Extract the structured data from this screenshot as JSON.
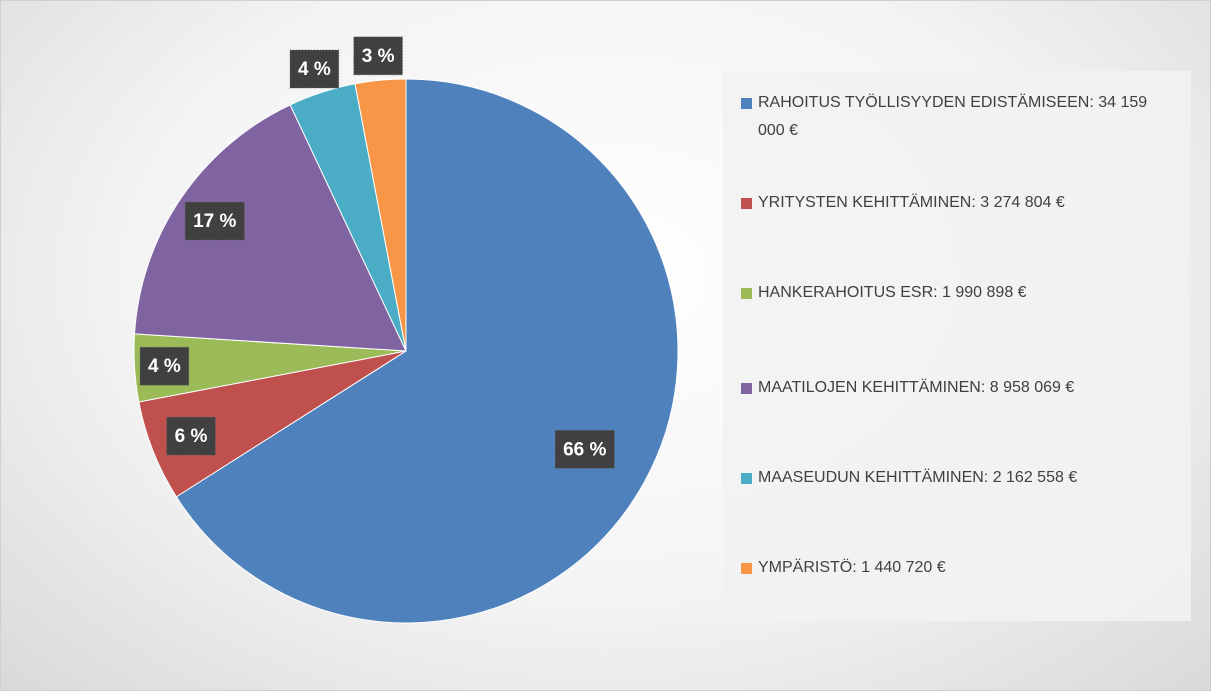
{
  "chart_data": {
    "type": "pie",
    "categories": [
      "RAHOITUS TYÖLLISYYDEN EDISTÄMISEEN: 34 159 000 €",
      "YRITYSTEN KEHITTÄMINEN: 3 274 804 €",
      "HANKERAHOITUS ESR: 1 990 898 €",
      "MAATILOJEN KEHITTÄMINEN: 8 958 069 €",
      "MAASEUDUN KEHITTÄMINEN: 2 162 558 €",
      "YMPÄRISTÖ: 1 440 720 €"
    ],
    "values": [
      66,
      6,
      4,
      17,
      4,
      3
    ],
    "value_labels": [
      "66 %",
      "6 %",
      "4 %",
      "17 %",
      "4 %",
      "3 %"
    ],
    "colors": [
      "#4f81bd",
      "#c0504d",
      "#9bbb59",
      "#8064a2",
      "#4bacc6",
      "#f79646"
    ],
    "legend": "right"
  }
}
